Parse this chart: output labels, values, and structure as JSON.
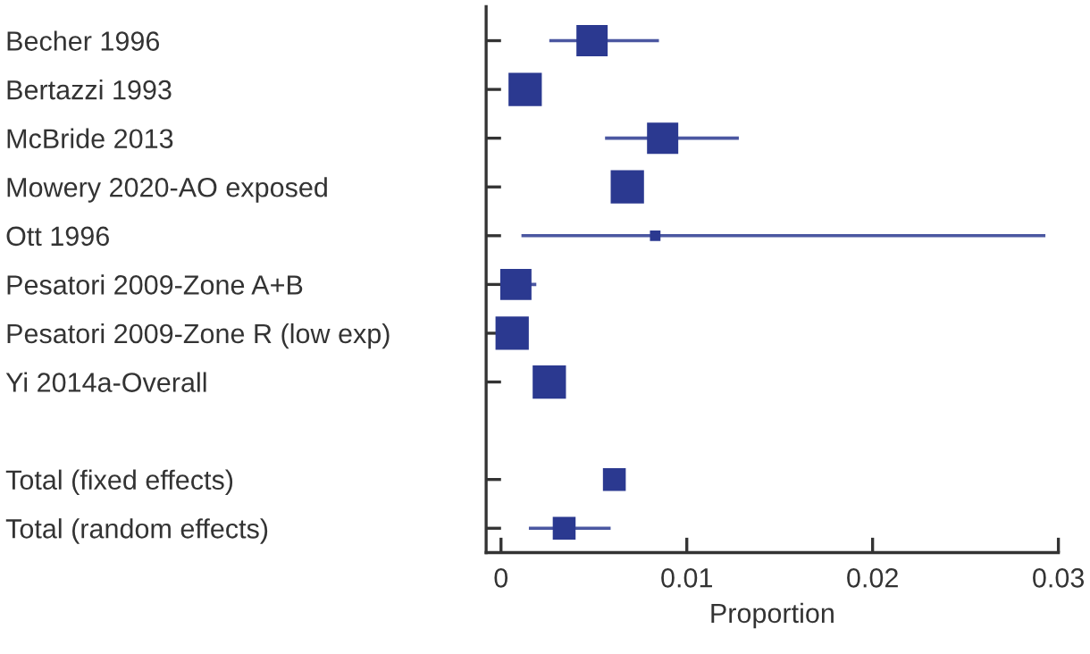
{
  "chart_data": {
    "type": "bubble",
    "orientation": "horizontal",
    "marker": "square",
    "xlabel": "Proportion",
    "categories": [
      "Becher 1996",
      "Bertazzi 1993",
      "McBride 2013",
      "Mowery 2020-AO exposed",
      "Ott 1996",
      "Pesatori 2009-Zone A+B",
      "Pesatori 2009-Zone R (low exp)",
      "Yi 2014a-Overall",
      null,
      "Total (fixed effects)",
      "Total (random effects)"
    ],
    "series": [
      {
        "color": "#2b3990",
        "values": [
          0.0049,
          0.0013,
          0.0087,
          0.0068,
          0.0083,
          0.0008,
          0.0006,
          0.0026,
          null,
          0.0061,
          0.0034
        ],
        "sizes": [
          0.88,
          1,
          0.88,
          1,
          0.1,
          0.88,
          1,
          1,
          null,
          0.47,
          0.47
        ],
        "errors": [
          [
            0.0026,
            0.0085
          ],
          null,
          [
            0.0056,
            0.0128
          ],
          null,
          [
            0.0011,
            0.0293
          ],
          [
            0.0002,
            0.0019
          ],
          null,
          null,
          null,
          null,
          [
            0.0015,
            0.0059
          ]
        ]
      }
    ],
    "xlim": [
      -0.0008,
      0.03
    ],
    "xticks": [
      0,
      0.01,
      0.02,
      0.03
    ],
    "grid": false,
    "legend": false
  }
}
